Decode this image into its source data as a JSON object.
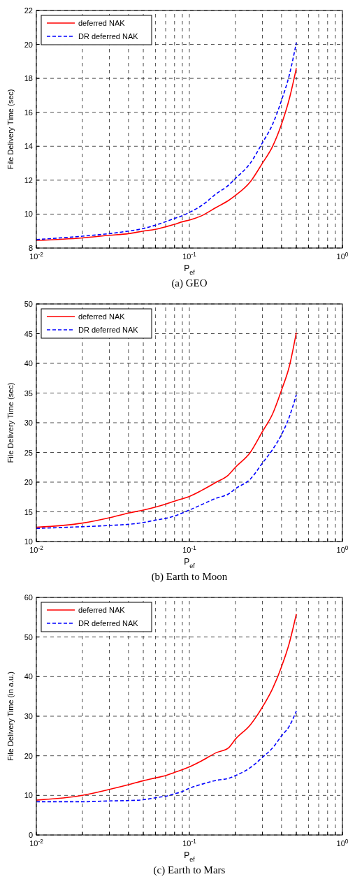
{
  "chart_data": [
    {
      "type": "line",
      "title": "(a) GEO",
      "xlabel": "P$_{ef}$",
      "ylabel": "File Delivery Time (sec)",
      "log": "x",
      "grid": true,
      "legend": "top left",
      "xlim": [
        0.01,
        1
      ],
      "ylim": [
        8,
        22
      ],
      "yticks": [
        8,
        10,
        12,
        14,
        16,
        18,
        20,
        22
      ],
      "xticks": [
        {
          "value": 0.01,
          "label": "10$^{-2}$"
        },
        {
          "value": 0.02,
          "label": null
        },
        {
          "value": 0.03,
          "label": null
        },
        {
          "value": 0.04,
          "label": null
        },
        {
          "value": 0.05,
          "label": null
        },
        {
          "value": 0.06,
          "label": null
        },
        {
          "value": 0.07,
          "label": null
        },
        {
          "value": 0.08,
          "label": null
        },
        {
          "value": 0.09,
          "label": null
        },
        {
          "value": 0.1,
          "label": "10$^{-1}$"
        },
        {
          "value": 0.2,
          "label": null
        },
        {
          "value": 0.3,
          "label": null
        },
        {
          "value": 0.4,
          "label": null
        },
        {
          "value": 0.5,
          "label": null
        },
        {
          "value": 0.6,
          "label": null
        },
        {
          "value": 0.7,
          "label": null
        },
        {
          "value": 0.8,
          "label": null
        },
        {
          "value": 0.9,
          "label": null
        },
        {
          "value": 1,
          "label": "10$^{0}$"
        }
      ],
      "x": [
        0.01,
        0.02,
        0.03,
        0.04,
        0.05,
        0.06,
        0.07,
        0.08,
        0.09,
        0.1,
        0.12,
        0.15,
        0.18,
        0.2,
        0.25,
        0.3,
        0.35,
        0.4,
        0.45,
        0.5
      ],
      "series": [
        {
          "name": "deferred NAK",
          "color": "#ff0000",
          "line_style": "solid",
          "values": [
            8.45,
            8.6,
            8.75,
            8.85,
            9.0,
            9.1,
            9.25,
            9.4,
            9.55,
            9.65,
            9.9,
            10.4,
            10.8,
            11.1,
            11.9,
            13.0,
            14.0,
            15.3,
            16.8,
            18.6
          ]
        },
        {
          "name": "DR deferred NAK",
          "color": "#0000ff",
          "line_style": "dashed",
          "values": [
            8.5,
            8.7,
            8.85,
            9.0,
            9.15,
            9.35,
            9.55,
            9.75,
            9.9,
            10.1,
            10.5,
            11.2,
            11.7,
            12.1,
            13.0,
            14.2,
            15.3,
            16.7,
            18.2,
            20.1
          ]
        }
      ]
    },
    {
      "type": "line",
      "title": "(b) Earth to Moon",
      "xlabel": "P$_{ef}$",
      "ylabel": "File Delivery Time (sec)",
      "log": "x",
      "grid": true,
      "legend": "top left",
      "xlim": [
        0.01,
        1
      ],
      "ylim": [
        10,
        50
      ],
      "yticks": [
        10,
        15,
        20,
        25,
        30,
        35,
        40,
        45,
        50
      ],
      "xticks": [
        {
          "value": 0.01,
          "label": "10$^{-2}$"
        },
        {
          "value": 0.02,
          "label": null
        },
        {
          "value": 0.03,
          "label": null
        },
        {
          "value": 0.04,
          "label": null
        },
        {
          "value": 0.05,
          "label": null
        },
        {
          "value": 0.06,
          "label": null
        },
        {
          "value": 0.07,
          "label": null
        },
        {
          "value": 0.08,
          "label": null
        },
        {
          "value": 0.09,
          "label": null
        },
        {
          "value": 0.1,
          "label": "10$^{-1}$"
        },
        {
          "value": 0.2,
          "label": null
        },
        {
          "value": 0.3,
          "label": null
        },
        {
          "value": 0.4,
          "label": null
        },
        {
          "value": 0.5,
          "label": null
        },
        {
          "value": 0.6,
          "label": null
        },
        {
          "value": 0.7,
          "label": null
        },
        {
          "value": 0.8,
          "label": null
        },
        {
          "value": 0.9,
          "label": null
        },
        {
          "value": 1,
          "label": "10$^{0}$"
        }
      ],
      "x": [
        0.01,
        0.02,
        0.03,
        0.04,
        0.05,
        0.06,
        0.07,
        0.08,
        0.09,
        0.1,
        0.12,
        0.15,
        0.18,
        0.2,
        0.25,
        0.3,
        0.35,
        0.4,
        0.45,
        0.5
      ],
      "series": [
        {
          "name": "deferred NAK",
          "color": "#ff0000",
          "line_style": "solid",
          "values": [
            12.4,
            13.1,
            14.0,
            14.8,
            15.3,
            15.8,
            16.3,
            16.8,
            17.2,
            17.6,
            18.6,
            20.0,
            21.2,
            22.5,
            25.0,
            28.5,
            31.5,
            35.5,
            39.5,
            45.2
          ]
        },
        {
          "name": "DR deferred NAK",
          "color": "#0000ff",
          "line_style": "dashed",
          "values": [
            12.2,
            12.5,
            12.7,
            12.9,
            13.2,
            13.6,
            13.9,
            14.3,
            14.8,
            15.3,
            16.2,
            17.3,
            18.0,
            18.9,
            20.5,
            23.2,
            25.5,
            28.0,
            31.0,
            34.7
          ]
        }
      ]
    },
    {
      "type": "line",
      "title": "(c) Earth to Mars",
      "xlabel": "P$_{ef}$",
      "ylabel": "File Delivery Time (in a.u.)",
      "log": "x",
      "grid": true,
      "legend": "top left",
      "xlim": [
        0.01,
        1
      ],
      "ylim": [
        0,
        60
      ],
      "yticks": [
        0,
        10,
        20,
        30,
        40,
        50,
        60
      ],
      "xticks": [
        {
          "value": 0.01,
          "label": "10$^{-2}$"
        },
        {
          "value": 0.02,
          "label": null
        },
        {
          "value": 0.03,
          "label": null
        },
        {
          "value": 0.04,
          "label": null
        },
        {
          "value": 0.05,
          "label": null
        },
        {
          "value": 0.06,
          "label": null
        },
        {
          "value": 0.07,
          "label": null
        },
        {
          "value": 0.08,
          "label": null
        },
        {
          "value": 0.09,
          "label": null
        },
        {
          "value": 0.1,
          "label": "10$^{-1}$"
        },
        {
          "value": 0.2,
          "label": null
        },
        {
          "value": 0.3,
          "label": null
        },
        {
          "value": 0.4,
          "label": null
        },
        {
          "value": 0.5,
          "label": null
        },
        {
          "value": 0.6,
          "label": null
        },
        {
          "value": 0.7,
          "label": null
        },
        {
          "value": 0.8,
          "label": null
        },
        {
          "value": 0.9,
          "label": null
        },
        {
          "value": 1,
          "label": "10$^{0}$"
        }
      ],
      "x": [
        0.01,
        0.02,
        0.03,
        0.04,
        0.05,
        0.06,
        0.07,
        0.08,
        0.09,
        0.1,
        0.12,
        0.15,
        0.18,
        0.2,
        0.25,
        0.3,
        0.35,
        0.4,
        0.45,
        0.5
      ],
      "series": [
        {
          "name": "deferred NAK",
          "color": "#ff0000",
          "line_style": "solid",
          "values": [
            8.8,
            10.0,
            11.5,
            12.7,
            13.7,
            14.4,
            15.0,
            15.8,
            16.5,
            17.2,
            18.7,
            20.8,
            22.0,
            24.2,
            27.8,
            32.3,
            37.0,
            42.5,
            48.5,
            55.8
          ]
        },
        {
          "name": "DR deferred NAK",
          "color": "#0000ff",
          "line_style": "dashed",
          "values": [
            8.4,
            8.4,
            8.6,
            8.7,
            8.9,
            9.4,
            9.8,
            10.4,
            11.0,
            11.8,
            12.8,
            13.8,
            14.3,
            15.0,
            17.0,
            19.6,
            22.0,
            25.0,
            27.5,
            31.3
          ]
        }
      ]
    }
  ]
}
